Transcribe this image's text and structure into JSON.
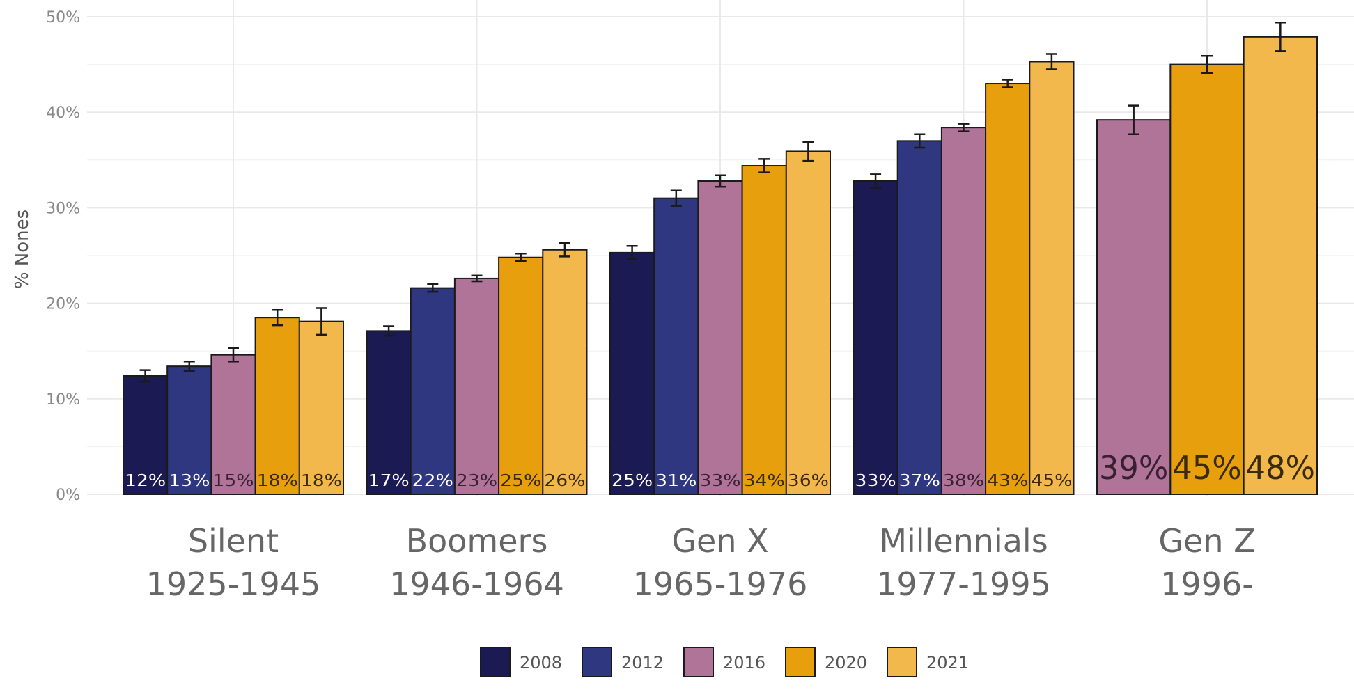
{
  "chart_data": {
    "type": "bar",
    "ylabel": "% Nones",
    "xlabel": "",
    "ylim": [
      0,
      50
    ],
    "yticks": [
      "0%",
      "10%",
      "20%",
      "30%",
      "40%",
      "50%"
    ],
    "categories": [
      [
        "Silent",
        "1925-1945"
      ],
      [
        "Boomers",
        "1946-1964"
      ],
      [
        "Gen X",
        "1965-1976"
      ],
      [
        "Millennials",
        "1977-1995"
      ],
      [
        "Gen Z",
        "1996-"
      ]
    ],
    "series": [
      {
        "name": "2008",
        "color": "#1b1a52",
        "label_color": "#ffffff",
        "values": [
          12.4,
          17.1,
          25.3,
          32.8,
          null
        ],
        "errors": [
          0.6,
          0.5,
          0.7,
          0.7,
          null
        ],
        "labels": [
          "12%",
          "17%",
          "25%",
          "33%",
          ""
        ]
      },
      {
        "name": "2012",
        "color": "#2f3780",
        "label_color": "#ffffff",
        "values": [
          13.4,
          21.6,
          31.0,
          37.0,
          null
        ],
        "errors": [
          0.5,
          0.4,
          0.8,
          0.7,
          null
        ],
        "labels": [
          "13%",
          "22%",
          "31%",
          "37%",
          ""
        ]
      },
      {
        "name": "2016",
        "color": "#b07499",
        "label_color": "#3a1f33",
        "values": [
          14.6,
          22.6,
          32.8,
          38.4,
          39.2
        ],
        "errors": [
          0.7,
          0.3,
          0.6,
          0.4,
          1.5
        ],
        "labels": [
          "15%",
          "23%",
          "33%",
          "38%",
          "39%"
        ]
      },
      {
        "name": "2020",
        "color": "#e89f0e",
        "label_color": "#3a2a05",
        "values": [
          18.5,
          24.8,
          34.4,
          43.0,
          45.0
        ],
        "errors": [
          0.8,
          0.4,
          0.7,
          0.4,
          0.9
        ],
        "labels": [
          "18%",
          "25%",
          "34%",
          "43%",
          "45%"
        ]
      },
      {
        "name": "2021",
        "color": "#f3b84b",
        "label_color": "#3a2a05",
        "values": [
          18.1,
          25.6,
          35.9,
          45.3,
          47.9
        ],
        "errors": [
          1.4,
          0.7,
          1.0,
          0.8,
          1.5
        ],
        "labels": [
          "18%",
          "26%",
          "36%",
          "45%",
          "48%"
        ]
      }
    ],
    "grid": true,
    "legend_position": "bottom"
  }
}
